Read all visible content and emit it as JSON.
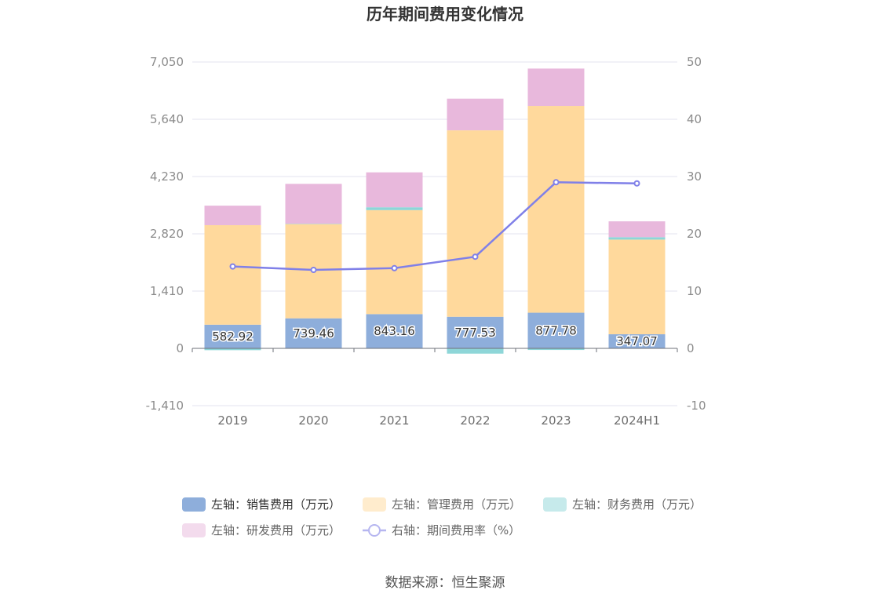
{
  "chart_data": {
    "type": "bar",
    "title": "历年期间费用变化情况",
    "source": "数据来源：恒生聚源",
    "categories": [
      "2019",
      "2020",
      "2021",
      "2022",
      "2023",
      "2024H1"
    ],
    "left_axis": {
      "ticks": [
        "7,050",
        "5,640",
        "4,230",
        "2,820",
        "1,410",
        "0",
        "-1,410"
      ],
      "min": -1410,
      "max": 7050
    },
    "right_axis": {
      "ticks": [
        "50",
        "40",
        "30",
        "20",
        "10",
        "0",
        "-10"
      ],
      "min": -10,
      "max": 50
    },
    "series": [
      {
        "name": "左轴：销售费用（万元）",
        "axis": "left",
        "color": "#8eaedb",
        "values": [
          582.92,
          739.46,
          843.16,
          777.53,
          877.78,
          347.07
        ],
        "labels": [
          "582.92",
          "739.46",
          "843.16",
          "777.53",
          "877.78",
          "347.07"
        ]
      },
      {
        "name": "左轴：管理费用（万元）",
        "axis": "left",
        "color": "#ffd99c",
        "values": [
          2450,
          2320,
          2560,
          4590,
          5090,
          2330
        ]
      },
      {
        "name": "左轴：财务费用（万元）",
        "axis": "left",
        "color": "#8ed6d8",
        "values": [
          -45,
          10,
          70,
          -130,
          -40,
          60
        ]
      },
      {
        "name": "左轴：研发费用（万元）",
        "axis": "left",
        "color": "#e8b8dc",
        "values": [
          480,
          980,
          860,
          780,
          920,
          390
        ]
      },
      {
        "name": "右轴：期间费用率（%）",
        "axis": "right",
        "type": "line",
        "color": "#8080e8",
        "values": [
          14.3,
          13.7,
          14.0,
          16.0,
          29.0,
          28.8
        ]
      }
    ],
    "legend_position": "bottom",
    "grid": true
  }
}
